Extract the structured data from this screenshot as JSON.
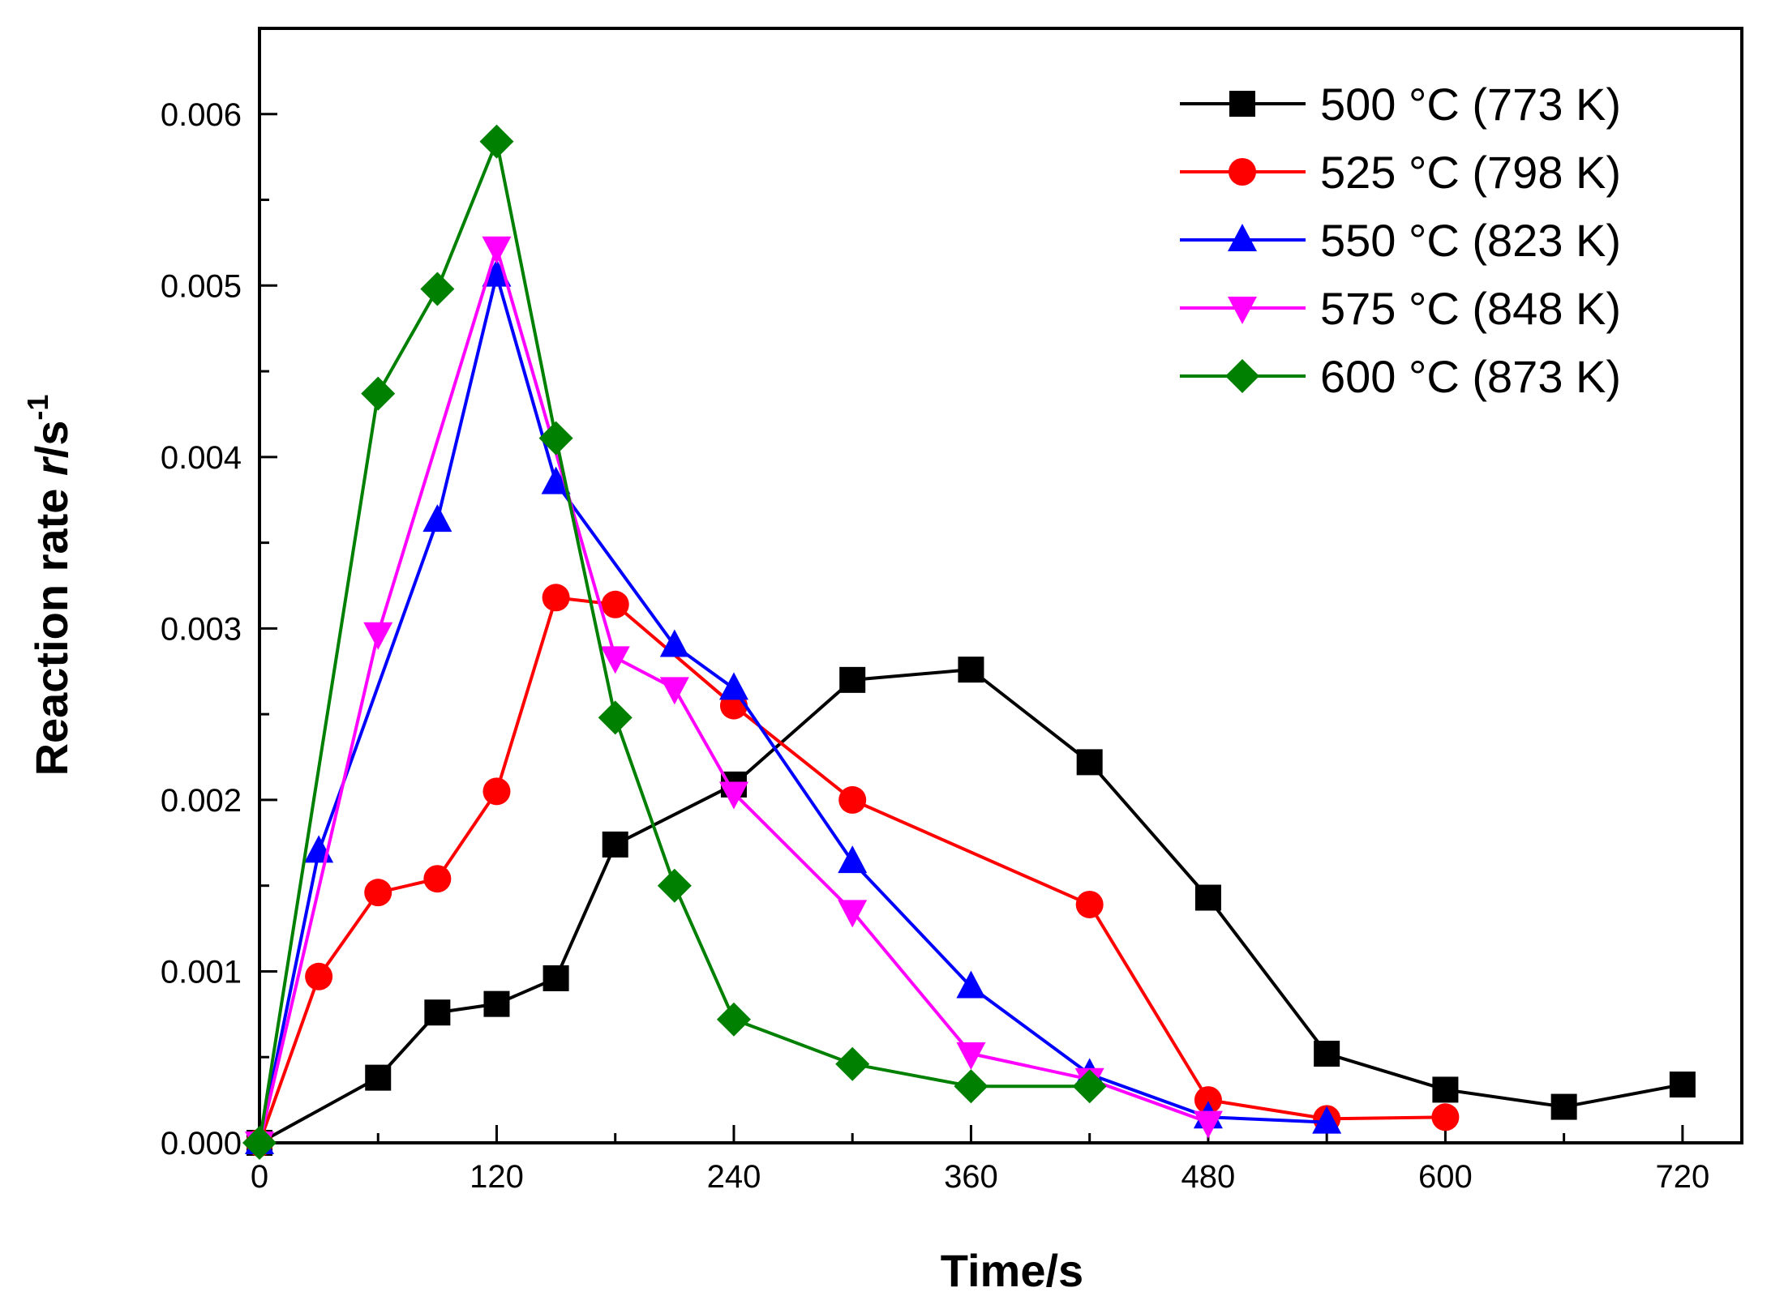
{
  "chart_data": {
    "type": "line",
    "xlabel": "Time/s",
    "ylabel_parts": [
      "Reaction rate ",
      "r",
      "/s",
      "-1"
    ],
    "xlim": [
      0,
      750
    ],
    "ylim": [
      0,
      0.0065
    ],
    "xticks": [
      0,
      120,
      240,
      360,
      480,
      600,
      720
    ],
    "xtick_labels": [
      "0",
      "120",
      "240",
      "360",
      "480",
      "600",
      "720"
    ],
    "xminor_step": 60,
    "yticks": [
      0,
      0.001,
      0.002,
      0.003,
      0.004,
      0.005,
      0.006
    ],
    "ytick_labels": [
      "0.000",
      "0.001",
      "0.002",
      "0.003",
      "0.004",
      "0.005",
      "0.006"
    ],
    "yminor_step": 0.0005,
    "grid": false,
    "legend_position": "top-right",
    "series": [
      {
        "name": "500 °C (773 K)",
        "color": "#000000",
        "marker": "square",
        "x": [
          0,
          60,
          90,
          120,
          150,
          180,
          240,
          300,
          360,
          420,
          480,
          540,
          600,
          660,
          720
        ],
        "y": [
          0,
          0.00038,
          0.00076,
          0.00081,
          0.00096,
          0.00174,
          0.00209,
          0.0027,
          0.00276,
          0.00222,
          0.00143,
          0.00052,
          0.00031,
          0.00021,
          0.00034
        ]
      },
      {
        "name": "525 °C (798 K)",
        "color": "#ff0000",
        "marker": "circle",
        "x": [
          0,
          30,
          60,
          90,
          120,
          150,
          180,
          240,
          300,
          420,
          480,
          540,
          600
        ],
        "y": [
          0,
          0.00097,
          0.00146,
          0.00154,
          0.00205,
          0.00318,
          0.00314,
          0.00255,
          0.002,
          0.00139,
          0.00025,
          0.00014,
          0.00015
        ]
      },
      {
        "name": "550 °C (823 K)",
        "color": "#0000ff",
        "marker": "triangle-up",
        "x": [
          0,
          30,
          90,
          120,
          150,
          210,
          240,
          300,
          360,
          420,
          480,
          540
        ],
        "y": [
          0,
          0.0017,
          0.00363,
          0.00506,
          0.00385,
          0.0029,
          0.00265,
          0.00164,
          0.00091,
          0.0004,
          0.00015,
          0.00012
        ]
      },
      {
        "name": "575 °C (848 K)",
        "color": "#ff00ff",
        "marker": "triangle-down",
        "x": [
          0,
          60,
          120,
          180,
          210,
          240,
          300,
          360,
          420,
          480
        ],
        "y": [
          0,
          0.00297,
          0.00522,
          0.00283,
          0.00265,
          0.00204,
          0.00135,
          0.00052,
          0.00037,
          0.00012
        ]
      },
      {
        "name": "600 °C (873 K)",
        "color": "#008000",
        "marker": "diamond",
        "x": [
          0,
          60,
          90,
          120,
          150,
          180,
          210,
          240,
          300,
          360,
          420
        ],
        "y": [
          0,
          0.00437,
          0.00498,
          0.00584,
          0.00411,
          0.00248,
          0.0015,
          0.00072,
          0.00046,
          0.00033,
          0.00033
        ]
      }
    ]
  }
}
